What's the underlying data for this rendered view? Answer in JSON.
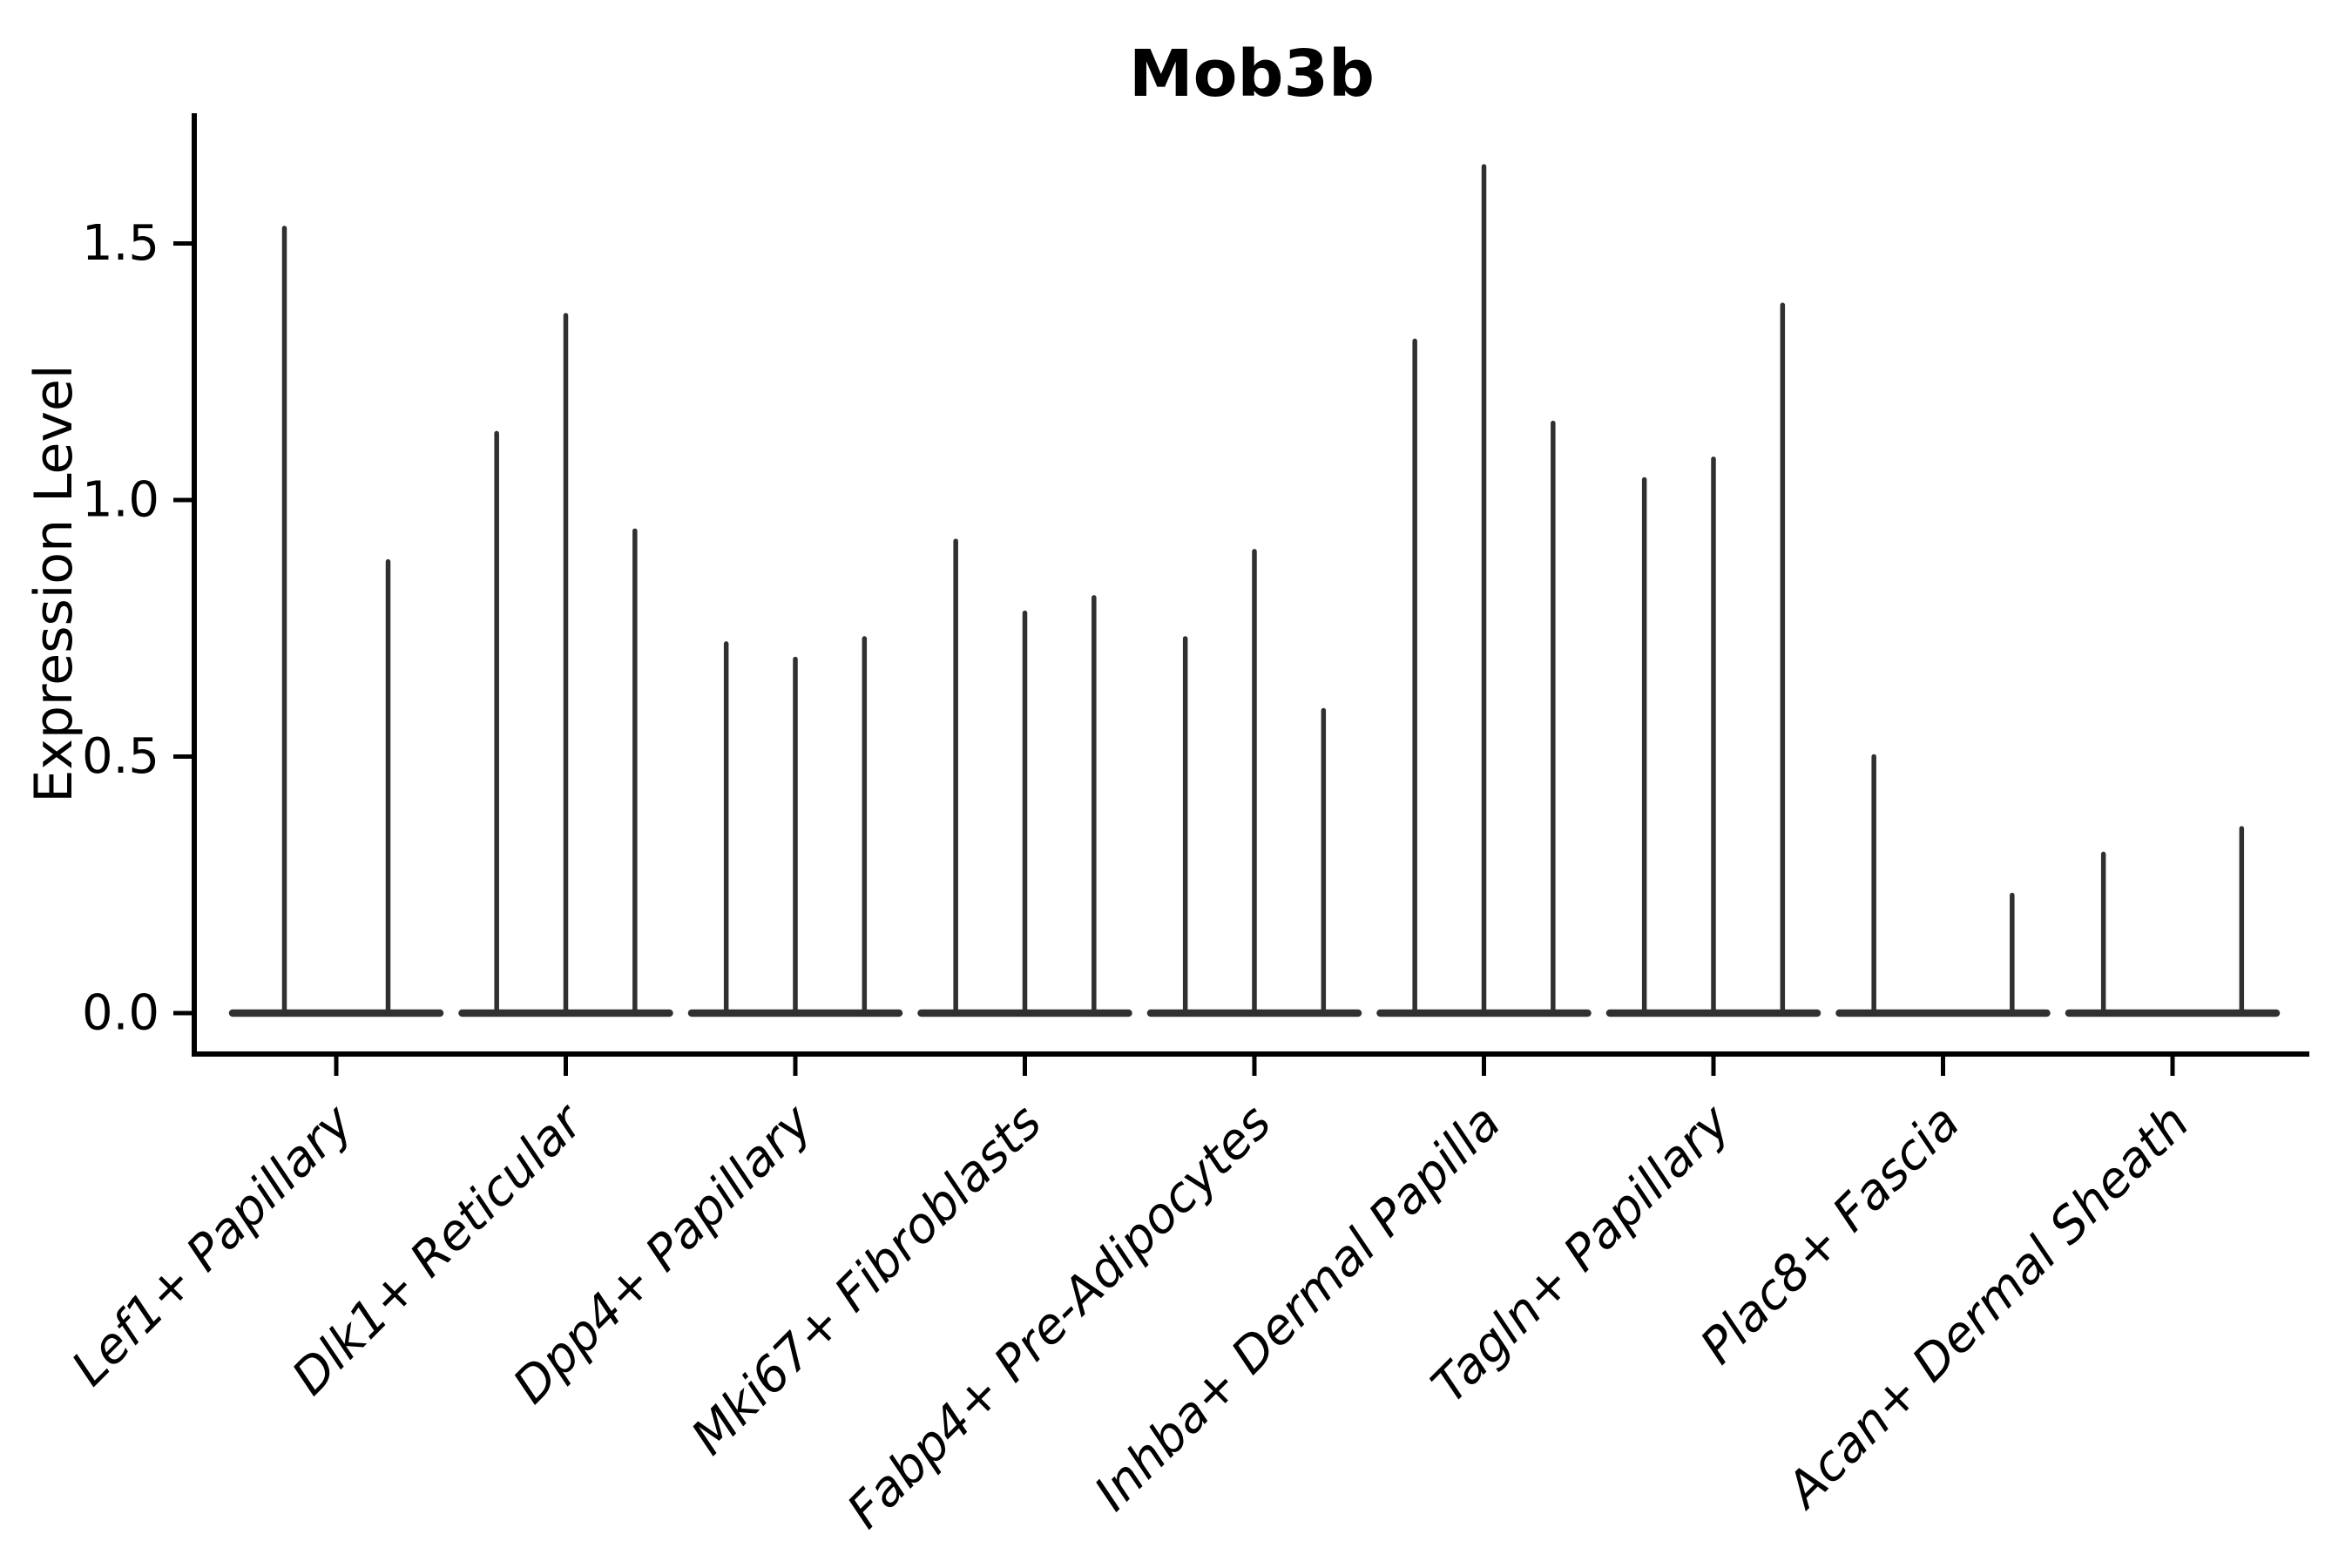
{
  "figure": {
    "background": "#ffffff",
    "axis_color": "#000000",
    "violin_color": "#303030"
  },
  "chart_data": {
    "type": "violin",
    "title": "Mob3b",
    "xlabel": "",
    "ylabel": "Expression Level",
    "ylim": [
      0,
      1.77
    ],
    "yticks": [
      0.0,
      0.5,
      1.0,
      1.5
    ],
    "ytick_labels": [
      "0.0",
      "0.5",
      "1.0",
      "1.5"
    ],
    "grid": false,
    "legend": "none",
    "xtick_rotation_deg": 45,
    "xtick_style": "italic",
    "categories": [
      "Lef1+ Papillary",
      "Dlk1+ Reticular",
      "Dpp4+ Papillary",
      "Mki67+ Fibroblasts",
      "Fabp4+ Pre-Adipocytes",
      "Inhba+ Dermal Papilla",
      "Tagln+ Papillary",
      "Plac8+ Fascia",
      "Acan+ Dermal Sheath"
    ],
    "groups": [
      {
        "category": "Lef1+ Papillary",
        "n_slots": 2,
        "violins": [
          {
            "slot": 0,
            "max": 1.53
          },
          {
            "slot": 1,
            "max": 0.88
          }
        ]
      },
      {
        "category": "Dlk1+ Reticular",
        "n_slots": 3,
        "violins": [
          {
            "slot": 0,
            "max": 1.13
          },
          {
            "slot": 1,
            "max": 1.36
          },
          {
            "slot": 2,
            "max": 0.94
          }
        ]
      },
      {
        "category": "Dpp4+ Papillary",
        "n_slots": 3,
        "violins": [
          {
            "slot": 0,
            "max": 0.72
          },
          {
            "slot": 1,
            "max": 0.69
          },
          {
            "slot": 2,
            "max": 0.73
          }
        ]
      },
      {
        "category": "Mki67+ Fibroblasts",
        "n_slots": 3,
        "violins": [
          {
            "slot": 0,
            "max": 0.92
          },
          {
            "slot": 1,
            "max": 0.78
          },
          {
            "slot": 2,
            "max": 0.81
          }
        ]
      },
      {
        "category": "Fabp4+ Pre-Adipocytes",
        "n_slots": 3,
        "violins": [
          {
            "slot": 0,
            "max": 0.73
          },
          {
            "slot": 1,
            "max": 0.9
          },
          {
            "slot": 2,
            "max": 0.59
          }
        ]
      },
      {
        "category": "Inhba+ Dermal Papilla",
        "n_slots": 3,
        "violins": [
          {
            "slot": 0,
            "max": 1.31
          },
          {
            "slot": 1,
            "max": 1.65
          },
          {
            "slot": 2,
            "max": 1.15
          }
        ]
      },
      {
        "category": "Tagln+ Papillary",
        "n_slots": 3,
        "violins": [
          {
            "slot": 0,
            "max": 1.04
          },
          {
            "slot": 1,
            "max": 1.08
          },
          {
            "slot": 2,
            "max": 1.38
          }
        ]
      },
      {
        "category": "Plac8+ Fascia",
        "n_slots": 3,
        "violins": [
          {
            "slot": 0,
            "max": 0.5
          },
          {
            "slot": 2,
            "max": 0.23
          }
        ]
      },
      {
        "category": "Acan+ Dermal Sheath",
        "n_slots": 3,
        "violins": [
          {
            "slot": 0,
            "max": 0.31
          },
          {
            "slot": 2,
            "max": 0.36
          }
        ]
      }
    ]
  }
}
